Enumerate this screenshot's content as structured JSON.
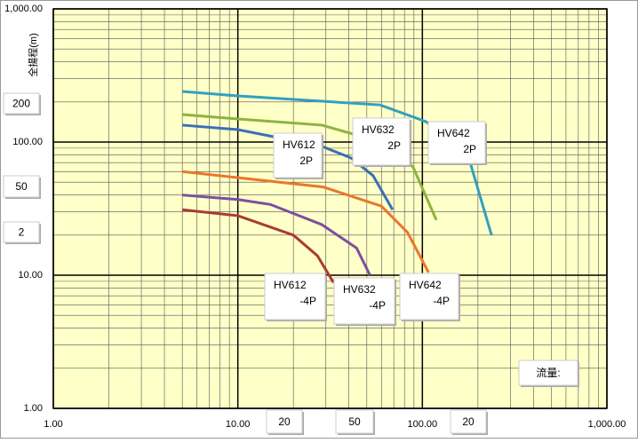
{
  "chart_data": {
    "type": "line",
    "y_label": "全揚程(m)",
    "x_label": "流量:",
    "log_x": true,
    "log_y": true,
    "grid": true,
    "minor_grid": true,
    "xlim": [
      1,
      1000
    ],
    "ylim": [
      1,
      1000
    ],
    "xticks": [
      {
        "value": 1,
        "label": "1.00"
      },
      {
        "value": 10,
        "label": "10.00"
      },
      {
        "value": 100,
        "label": "100.00"
      },
      {
        "value": 1000,
        "label": "1,000.00"
      }
    ],
    "yticks": [
      {
        "value": 1,
        "label": "1.00"
      },
      {
        "value": 10,
        "label": "10.00"
      },
      {
        "value": 100,
        "label": "100.00"
      },
      {
        "value": 1000,
        "label": "1,000.00"
      }
    ],
    "background": "#ffffc8",
    "series": [
      {
        "color": "#31a0c0",
        "x": [
          5,
          10,
          59,
          105,
          177,
          237
        ],
        "values": [
          240,
          222,
          190,
          142,
          79,
          20
        ]
      },
      {
        "color": "#8db33f",
        "x": [
          5,
          10,
          28.5,
          60,
          89,
          119
        ],
        "values": [
          161,
          149,
          134,
          100,
          65,
          26
        ]
      },
      {
        "color": "#3a6fb5",
        "x": [
          5,
          10,
          28.5,
          41,
          54,
          69
        ],
        "values": [
          134,
          124,
          93,
          76,
          56,
          31
        ]
      },
      {
        "color": "#e8782a",
        "x": [
          5,
          10,
          29,
          60,
          83,
          108
        ],
        "values": [
          60,
          54,
          46,
          33,
          21,
          10.5
        ]
      },
      {
        "color": "#7a4f9f",
        "x": [
          5,
          10,
          15,
          28.5,
          44,
          52
        ],
        "values": [
          40,
          37,
          34,
          24,
          16,
          10
        ]
      },
      {
        "color": "#a93a36",
        "x": [
          5,
          10,
          20,
          27,
          33
        ],
        "values": [
          31,
          28,
          20,
          14,
          8.8
        ]
      }
    ],
    "annotations": [
      {
        "lines": [
          "HV612",
          "2P"
        ]
      },
      {
        "lines": [
          "HV632",
          "2P"
        ]
      },
      {
        "lines": [
          "HV642",
          "2P"
        ]
      },
      {
        "lines": [
          "HV612",
          "-4P"
        ]
      },
      {
        "lines": [
          "HV632",
          "-4P"
        ]
      },
      {
        "lines": [
          "HV642",
          "-4P"
        ]
      }
    ],
    "extra_labels": [
      "200",
      "50",
      "2",
      "20",
      "50",
      "20"
    ]
  }
}
